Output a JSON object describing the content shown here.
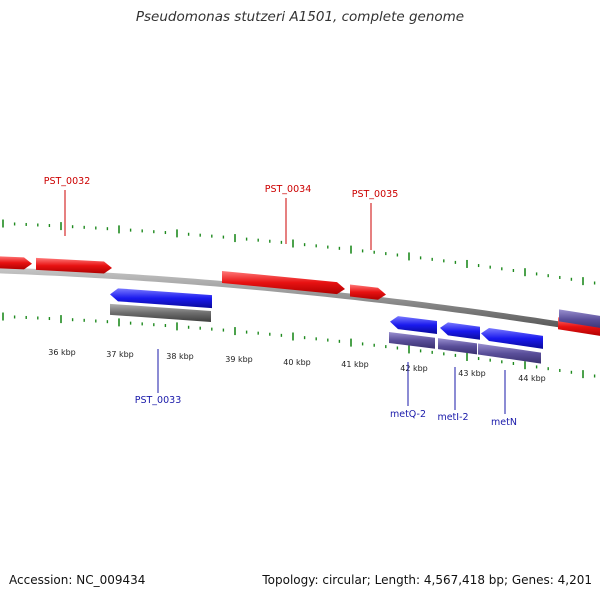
{
  "title": "Pseudomonas stutzeri A1501, complete genome",
  "footer": {
    "accession": "Accession: NC_009434",
    "summary": "Topology: circular; Length: 4,567,418 bp; Genes: 4,201"
  },
  "colors": {
    "forward_gene": "#e81212",
    "reverse_gene": "#1a1aee",
    "reverse_cds_bar": "#5a4f9a",
    "pseudo_bar": "#6e6e6e",
    "backbone": "#8c8c8c",
    "ticks": "#1f8a1f",
    "forward_label": "#cc0000",
    "reverse_label": "#1a1aaa"
  },
  "scale": {
    "unit": "kbp",
    "labels": [
      "36 kbp",
      "37 kbp",
      "38 kbp",
      "39 kbp",
      "40 kbp",
      "41 kbp",
      "42 kbp",
      "43 kbp",
      "44 kbp"
    ]
  },
  "genes": [
    {
      "id": "fwd-0031",
      "label": "",
      "strand": "+"
    },
    {
      "id": "fwd-0032",
      "label": "PST_0032",
      "strand": "+"
    },
    {
      "id": "rev-0033",
      "label": "PST_0033",
      "strand": "-"
    },
    {
      "id": "fwd-0034",
      "label": "PST_0034",
      "strand": "+"
    },
    {
      "id": "fwd-0035",
      "label": "PST_0035",
      "strand": "+"
    },
    {
      "id": "rev-metQ2",
      "label": "metQ-2",
      "strand": "-"
    },
    {
      "id": "rev-metI2",
      "label": "metI-2",
      "strand": "-"
    },
    {
      "id": "rev-metN",
      "label": "metN",
      "strand": "-"
    },
    {
      "id": "rev-edge",
      "label": "",
      "strand": "-"
    },
    {
      "id": "fwd-edge",
      "label": "",
      "strand": "+"
    }
  ]
}
